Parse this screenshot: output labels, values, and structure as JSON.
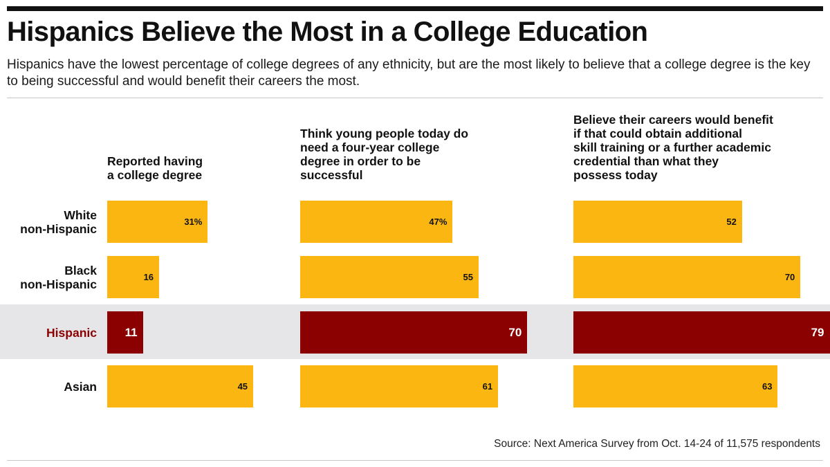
{
  "title": "Hispanics Believe the Most in a College Education",
  "subtitle": "Hispanics have the lowest percentage of college degrees of any ethnicity, but are the most likely to believe that a college degree is the key to being successful and would benefit their careers the most.",
  "source": "Source: Next America Survey from Oct. 14-24 of 11,575 respondents",
  "colors": {
    "bar": "#fbb612",
    "highlight_bar": "#8b0000",
    "highlight_band": "#e6e6e8"
  },
  "chart_data": {
    "type": "bar",
    "orientation": "horizontal",
    "unit": "%",
    "categories": [
      "White non-Hispanic",
      "Black non-Hispanic",
      "Hispanic",
      "Asian"
    ],
    "category_lines": [
      [
        "White",
        "non-Hispanic"
      ],
      [
        "Black",
        "non-Hispanic"
      ],
      [
        "Hispanic"
      ],
      [
        "Asian"
      ]
    ],
    "highlight_category": "Hispanic",
    "panels": [
      {
        "title": "Reported having a college degree",
        "title_lines": [
          "Reported having",
          "a college degree"
        ],
        "values": [
          31,
          16,
          11,
          45
        ],
        "value_labels": [
          "31%",
          "16",
          "11",
          "45"
        ]
      },
      {
        "title": "Think young people today do need a four-year college degree in order to be successful",
        "title_lines": [
          "Think young people today do",
          "need a four-year college",
          "degree in order to be",
          "successful"
        ],
        "values": [
          47,
          55,
          70,
          61
        ],
        "value_labels": [
          "47%",
          "55",
          "70",
          "61"
        ]
      },
      {
        "title": "Believe their careers would benefit if that could obtain additional skill training or a further academic credential than what they possess today",
        "title_lines": [
          "Believe their careers would benefit",
          "if that could obtain additional",
          "skill training or a further academic",
          "credential than what they",
          "possess today"
        ],
        "values": [
          52,
          70,
          79,
          63
        ],
        "value_labels": [
          "52",
          "70",
          "79",
          "63"
        ]
      }
    ]
  }
}
